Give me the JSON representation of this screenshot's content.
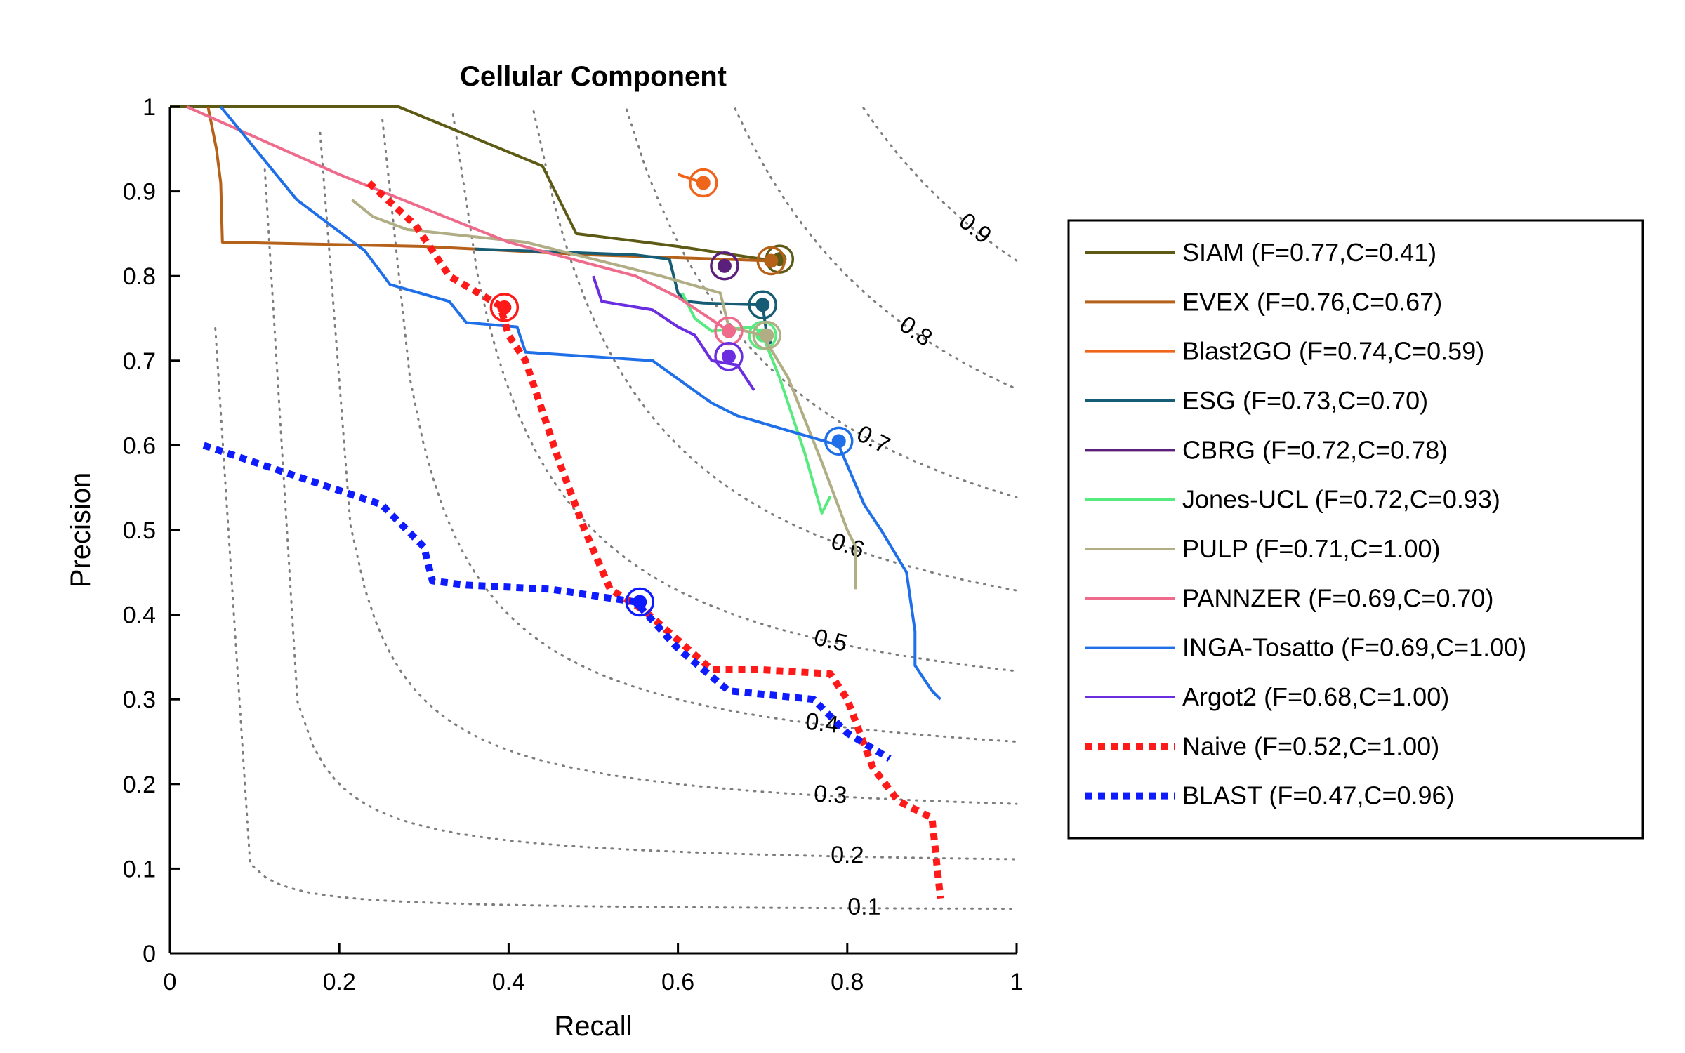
{
  "chart_data": {
    "type": "line",
    "title": "Cellular Component",
    "xlabel": "Recall",
    "ylabel": "Precision",
    "xlim": [
      0,
      1
    ],
    "ylim": [
      0,
      1
    ],
    "xticks": [
      "0",
      "0.2",
      "0.4",
      "0.6",
      "0.8",
      "1"
    ],
    "yticks": [
      "0",
      "0.1",
      "0.2",
      "0.3",
      "0.4",
      "0.5",
      "0.6",
      "0.7",
      "0.8",
      "0.9",
      "1"
    ],
    "grid": false,
    "legend_position": "right",
    "iso_f_curves": [
      {
        "label": "0.1",
        "f": 0.1
      },
      {
        "label": "0.2",
        "f": 0.2
      },
      {
        "label": "0.3",
        "f": 0.3
      },
      {
        "label": "0.4",
        "f": 0.4
      },
      {
        "label": "0.5",
        "f": 0.5
      },
      {
        "label": "0.6",
        "f": 0.6
      },
      {
        "label": "0.7",
        "f": 0.7
      },
      {
        "label": "0.8",
        "f": 0.8
      },
      {
        "label": "0.9",
        "f": 0.9
      }
    ],
    "series": [
      {
        "name": "SIAM",
        "legend": "SIAM (F=0.77,C=0.41)",
        "color": "#5c5a14",
        "dashed": false,
        "x": [
          0.0,
          0.27,
          0.44,
          0.48,
          0.6,
          0.7,
          0.72
        ],
        "y": [
          1.0,
          1.0,
          0.93,
          0.85,
          0.835,
          0.82,
          0.82
        ],
        "best": [
          0.72,
          0.82
        ]
      },
      {
        "name": "EVEX",
        "legend": "EVEX (F=0.76,C=0.67)",
        "color": "#b5611a",
        "dashed": false,
        "x": [
          0.045,
          0.055,
          0.06,
          0.062,
          0.3,
          0.5,
          0.71
        ],
        "y": [
          1.0,
          0.95,
          0.91,
          0.84,
          0.835,
          0.825,
          0.818
        ],
        "best": [
          0.71,
          0.818
        ]
      },
      {
        "name": "Blast2GO",
        "legend": "Blast2GO (F=0.74,C=0.59)",
        "color": "#f0651c",
        "dashed": false,
        "x": [
          0.6,
          0.63
        ],
        "y": [
          0.92,
          0.91
        ],
        "best": [
          0.63,
          0.91
        ]
      },
      {
        "name": "ESG",
        "legend": "ESG (F=0.73,C=0.70)",
        "color": "#155c74",
        "dashed": false,
        "x": [
          0.36,
          0.55,
          0.59,
          0.6,
          0.61,
          0.63,
          0.7,
          0.705,
          0.71
        ],
        "y": [
          0.832,
          0.825,
          0.82,
          0.78,
          0.77,
          0.768,
          0.766,
          0.73,
          0.72
        ],
        "best": [
          0.7,
          0.766
        ]
      },
      {
        "name": "CBRG",
        "legend": "CBRG (F=0.72,C=0.78)",
        "color": "#5a1f7a",
        "dashed": false,
        "x": [
          0.65,
          0.655
        ],
        "y": [
          0.815,
          0.812
        ],
        "best": [
          0.655,
          0.812
        ]
      },
      {
        "name": "Jones-UCL",
        "legend": "Jones-UCL (F=0.72,C=0.93)",
        "color": "#57ea7e",
        "dashed": false,
        "x": [
          0.605,
          0.62,
          0.64,
          0.69,
          0.7,
          0.72,
          0.73,
          0.75,
          0.77,
          0.78
        ],
        "y": [
          0.78,
          0.75,
          0.735,
          0.74,
          0.73,
          0.68,
          0.65,
          0.59,
          0.52,
          0.54
        ],
        "best": [
          0.7,
          0.73
        ]
      },
      {
        "name": "PULP",
        "legend": "PULP (F=0.71,C=1.00)",
        "color": "#b1ae86",
        "dashed": false,
        "x": [
          0.215,
          0.24,
          0.28,
          0.42,
          0.58,
          0.65,
          0.66,
          0.7,
          0.73,
          0.77,
          0.8,
          0.81,
          0.81
        ],
        "y": [
          0.89,
          0.87,
          0.855,
          0.84,
          0.8,
          0.78,
          0.74,
          0.73,
          0.68,
          0.58,
          0.5,
          0.48,
          0.43
        ],
        "best": [
          0.705,
          0.73
        ]
      },
      {
        "name": "PANNZER",
        "legend": "PANNZER (F=0.69,C=0.70)",
        "color": "#ee6b8c",
        "dashed": false,
        "x": [
          0.02,
          0.2,
          0.4,
          0.55,
          0.6,
          0.66
        ],
        "y": [
          1.0,
          0.92,
          0.84,
          0.8,
          0.775,
          0.735
        ],
        "best": [
          0.66,
          0.735
        ]
      },
      {
        "name": "INGA-Tosatto",
        "legend": "INGA-Tosatto (F=0.69,C=1.00)",
        "color": "#1f6fe8",
        "dashed": false,
        "x": [
          0.06,
          0.15,
          0.23,
          0.26,
          0.33,
          0.35,
          0.41,
          0.42,
          0.57,
          0.64,
          0.67,
          0.79,
          0.82,
          0.84,
          0.87,
          0.88,
          0.88,
          0.9,
          0.91
        ],
        "y": [
          1.0,
          0.89,
          0.83,
          0.79,
          0.77,
          0.745,
          0.74,
          0.71,
          0.7,
          0.65,
          0.635,
          0.6,
          0.53,
          0.5,
          0.45,
          0.38,
          0.34,
          0.31,
          0.3
        ],
        "best": [
          0.79,
          0.605
        ]
      },
      {
        "name": "Argot2",
        "legend": "Argot2 (F=0.68,C=1.00)",
        "color": "#6a2ee0",
        "dashed": false,
        "x": [
          0.5,
          0.51,
          0.57,
          0.6,
          0.62,
          0.64,
          0.67,
          0.69
        ],
        "y": [
          0.8,
          0.77,
          0.76,
          0.74,
          0.73,
          0.7,
          0.695,
          0.665
        ],
        "best": [
          0.66,
          0.705
        ]
      },
      {
        "name": "Naive",
        "legend": "Naive (F=0.52,C=1.00)",
        "color": "#ff1a1a",
        "dashed": true,
        "x": [
          0.235,
          0.29,
          0.33,
          0.39,
          0.4,
          0.42,
          0.46,
          0.49,
          0.52,
          0.56,
          0.6,
          0.64,
          0.7,
          0.78,
          0.8,
          0.83,
          0.86,
          0.9,
          0.91
        ],
        "y": [
          0.91,
          0.86,
          0.8,
          0.765,
          0.73,
          0.7,
          0.58,
          0.5,
          0.43,
          0.405,
          0.37,
          0.335,
          0.335,
          0.33,
          0.3,
          0.22,
          0.18,
          0.16,
          0.065
        ],
        "best": [
          0.395,
          0.763
        ]
      },
      {
        "name": "BLAST",
        "legend": "BLAST (F=0.47,C=0.96)",
        "color": "#0f1bff",
        "dashed": true,
        "x": [
          0.04,
          0.1,
          0.25,
          0.3,
          0.31,
          0.35,
          0.45,
          0.55,
          0.6,
          0.66,
          0.76,
          0.8,
          0.85
        ],
        "y": [
          0.6,
          0.58,
          0.53,
          0.48,
          0.44,
          0.435,
          0.43,
          0.415,
          0.36,
          0.31,
          0.3,
          0.26,
          0.23
        ],
        "best": [
          0.555,
          0.415
        ]
      }
    ]
  }
}
